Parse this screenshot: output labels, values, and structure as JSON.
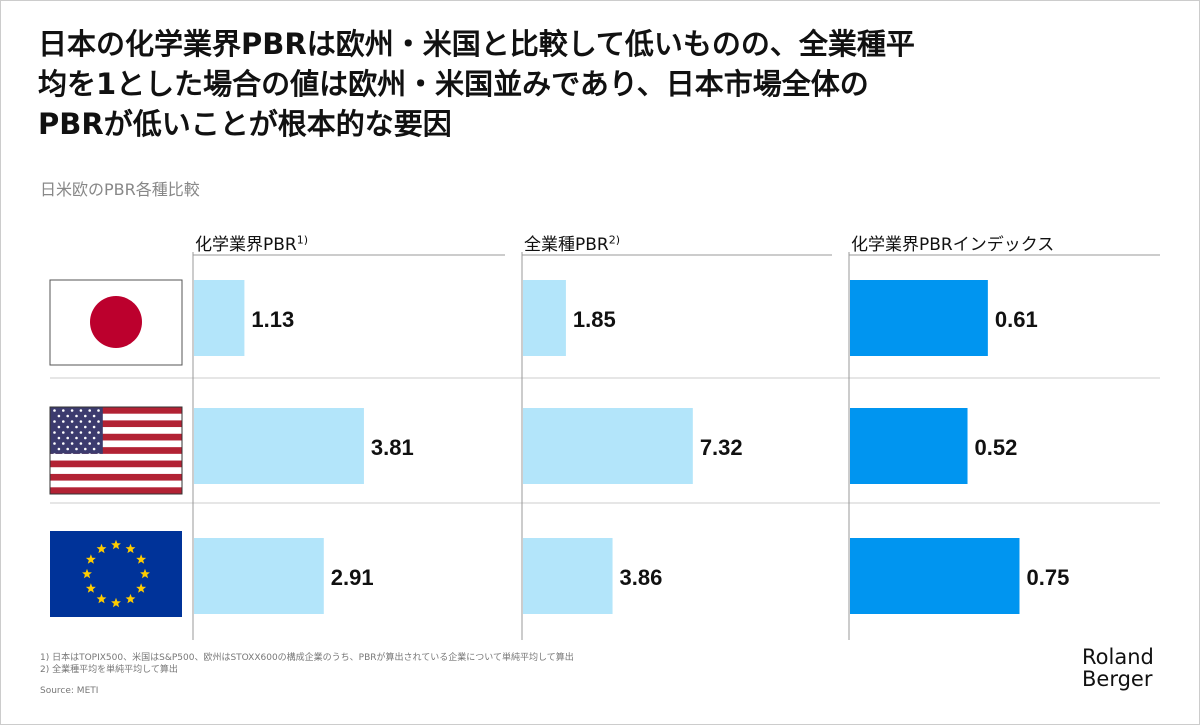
{
  "title_lines": [
    "日本の化学業界PBRは欧州・米国と比較して低いものの、全業種平",
    "均を1とした場合の値は欧州・米国並みであり、日本市場全体の",
    "PBRが低いことが根本的な要因"
  ],
  "subtitle": "日米欧のPBR各種比較",
  "chart_data": {
    "type": "bar",
    "orientation": "horizontal",
    "categories": [
      "Japan",
      "USA",
      "Europe"
    ],
    "category_display": "flags",
    "panels": [
      {
        "label": "化学業界PBR",
        "note": "1)",
        "values": [
          1.13,
          3.81,
          2.91
        ],
        "color": "#b3e5fa"
      },
      {
        "label": "全業種PBR",
        "note": "2)",
        "values": [
          1.85,
          7.32,
          3.86
        ],
        "color": "#b3e5fa"
      },
      {
        "label": "化学業界PBRインデックス",
        "note": "",
        "values": [
          0.61,
          0.52,
          0.75
        ],
        "color": "#0095f0"
      }
    ],
    "grid": false
  },
  "footnotes": [
    "1) 日本はTOPIX500、米国はS&P500、欧州はSTOXX600の構成企業のうち、PBRが算出されている企業について単純平均して算出",
    "2) 全業種平均を単純平均して算出"
  ],
  "source": "Source: METI",
  "logo": [
    "Roland",
    "Berger"
  ]
}
